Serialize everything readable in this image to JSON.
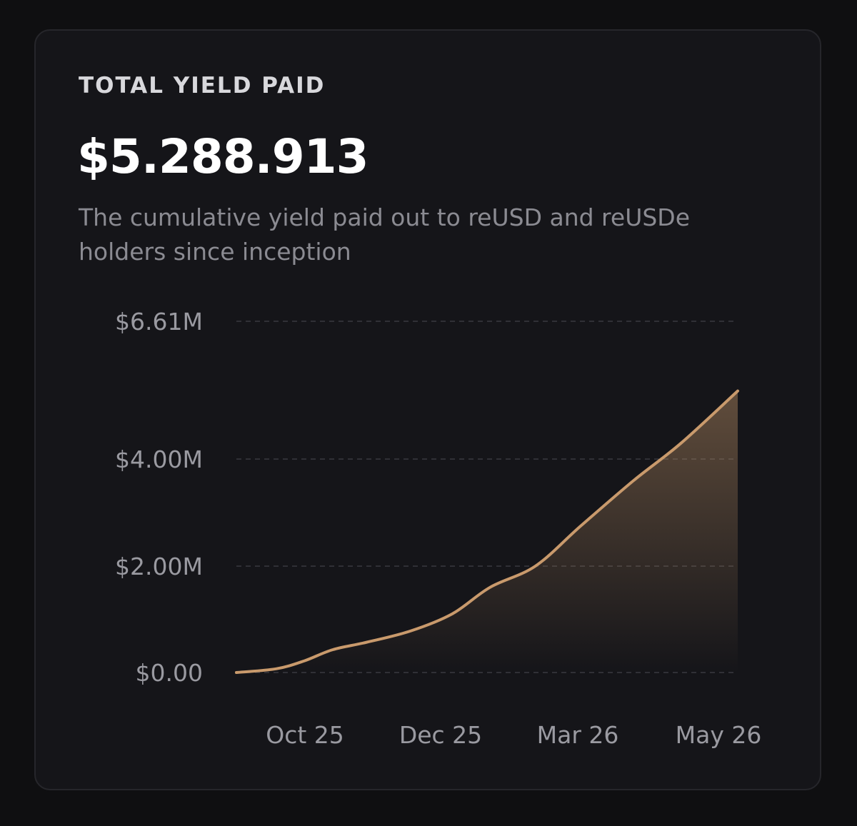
{
  "card": {
    "eyebrow": "TOTAL YIELD PAID",
    "value": "$5.288.913",
    "description": "The cumulative yield paid out to reUSD and reUSDe holders since inception"
  },
  "colors": {
    "background": "#0f0f11",
    "card": "#151519",
    "line": "#c99a6c",
    "grid": "#3a3a40"
  },
  "chart_data": {
    "type": "area",
    "title": "",
    "xlabel": "",
    "ylabel": "",
    "grid": "horizontal dashed",
    "ylim": [
      0,
      6.61
    ],
    "y_unit": "$M",
    "y_ticks": [
      {
        "value": 0,
        "label": "$0.00"
      },
      {
        "value": 2.0,
        "label": "$2.00M"
      },
      {
        "value": 4.0,
        "label": "$4.00M"
      },
      {
        "value": 6.61,
        "label": "$6.61M"
      }
    ],
    "x_ticks": [
      "Oct 25",
      "Dec 25",
      "Mar 26",
      "May 26"
    ],
    "x_range": [
      "2025-08-20",
      "2026-05-12"
    ],
    "x": [
      "2025-08-20",
      "2025-09-10",
      "2025-09-25",
      "2025-10-10",
      "2025-10-28",
      "2025-11-20",
      "2025-12-12",
      "2026-01-01",
      "2026-01-25",
      "2026-02-18",
      "2026-03-18",
      "2026-04-12",
      "2026-05-12"
    ],
    "series": [
      {
        "values": [
          0.0,
          0.07,
          0.22,
          0.43,
          0.57,
          0.78,
          1.1,
          1.6,
          2.0,
          2.75,
          3.6,
          4.3,
          5.29
        ]
      }
    ]
  }
}
